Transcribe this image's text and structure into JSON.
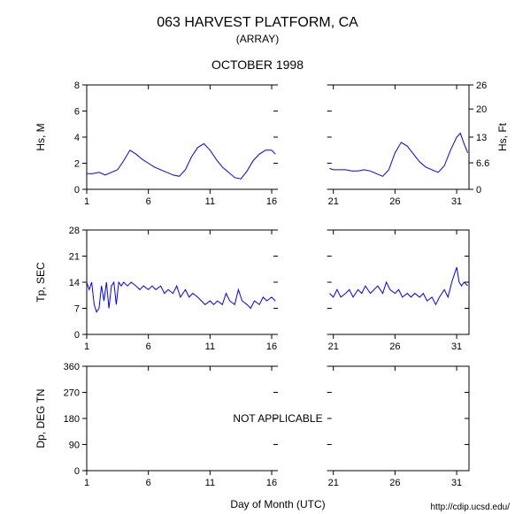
{
  "title": "063 HARVEST PLATFORM, CA",
  "subtitle": "(ARRAY)",
  "month_label": "OCTOBER 1998",
  "xaxis_label": "Day of Month (UTC)",
  "source_url": "http://cdip.ucsd.edu/",
  "background_color": "#ffffff",
  "line_color": "#0000ff",
  "axis_color": "#000000",
  "font_family": "Arial",
  "title_fontsize": 16,
  "subtitle_fontsize": 12,
  "month_fontsize": 14,
  "label_fontsize": 12,
  "tick_fontsize": 11,
  "x_axis": {
    "min": 1,
    "max": 32,
    "ticks": [
      1,
      6,
      11,
      16,
      21,
      26,
      31
    ]
  },
  "panels": [
    {
      "ylabel_left": "Hs, M",
      "ylabel_right": "Hs, Ft",
      "y_left": {
        "min": 0,
        "max": 8,
        "ticks": [
          0,
          2,
          4,
          6,
          8
        ]
      },
      "y_right": {
        "min": 0,
        "max": 26,
        "ticks": [
          0,
          6.6,
          13,
          20,
          26
        ]
      },
      "gap": [
        16.5,
        20.5
      ],
      "series": [
        {
          "seg": "A",
          "data": [
            [
              1,
              1.2
            ],
            [
              1.5,
              1.2
            ],
            [
              2,
              1.3
            ],
            [
              2.5,
              1.1
            ],
            [
              3,
              1.3
            ],
            [
              3.5,
              1.5
            ],
            [
              4,
              2.2
            ],
            [
              4.5,
              3.0
            ],
            [
              5,
              2.7
            ],
            [
              5.5,
              2.3
            ],
            [
              6,
              2.0
            ],
            [
              6.5,
              1.7
            ],
            [
              7,
              1.5
            ],
            [
              7.5,
              1.3
            ],
            [
              8,
              1.1
            ],
            [
              8.5,
              1.0
            ],
            [
              9,
              1.5
            ],
            [
              9.5,
              2.5
            ],
            [
              10,
              3.2
            ],
            [
              10.5,
              3.5
            ],
            [
              11,
              3.0
            ],
            [
              11.5,
              2.3
            ],
            [
              12,
              1.7
            ],
            [
              12.5,
              1.3
            ],
            [
              13,
              0.9
            ],
            [
              13.5,
              0.8
            ],
            [
              14,
              1.4
            ],
            [
              14.5,
              2.2
            ],
            [
              15,
              2.7
            ],
            [
              15.5,
              3.0
            ],
            [
              16,
              3.0
            ],
            [
              16.3,
              2.7
            ]
          ]
        },
        {
          "seg": "B",
          "data": [
            [
              20.7,
              1.6
            ],
            [
              21,
              1.5
            ],
            [
              21.5,
              1.5
            ],
            [
              22,
              1.5
            ],
            [
              22.5,
              1.4
            ],
            [
              23,
              1.4
            ],
            [
              23.5,
              1.5
            ],
            [
              24,
              1.4
            ],
            [
              24.5,
              1.2
            ],
            [
              25,
              1.0
            ],
            [
              25.5,
              1.5
            ],
            [
              26,
              2.8
            ],
            [
              26.5,
              3.6
            ],
            [
              27,
              3.3
            ],
            [
              27.5,
              2.7
            ],
            [
              28,
              2.1
            ],
            [
              28.5,
              1.7
            ],
            [
              29,
              1.5
            ],
            [
              29.5,
              1.3
            ],
            [
              30,
              1.8
            ],
            [
              30.5,
              3.0
            ],
            [
              31,
              4.0
            ],
            [
              31.3,
              4.3
            ],
            [
              31.6,
              3.5
            ],
            [
              31.9,
              2.8
            ]
          ]
        }
      ]
    },
    {
      "ylabel_left": "Tp, SEC",
      "y_left": {
        "min": 0,
        "max": 28,
        "ticks": [
          0,
          7,
          14,
          21,
          28
        ]
      },
      "gap": [
        16.5,
        20.5
      ],
      "series": [
        {
          "seg": "A",
          "data": [
            [
              1,
              14
            ],
            [
              1.2,
              12
            ],
            [
              1.4,
              14
            ],
            [
              1.6,
              8
            ],
            [
              1.8,
              6
            ],
            [
              2,
              7
            ],
            [
              2.2,
              13
            ],
            [
              2.4,
              9
            ],
            [
              2.6,
              14
            ],
            [
              2.8,
              7
            ],
            [
              3,
              13
            ],
            [
              3.2,
              14
            ],
            [
              3.4,
              8
            ],
            [
              3.6,
              14
            ],
            [
              3.8,
              13
            ],
            [
              4,
              14
            ],
            [
              4.3,
              13
            ],
            [
              4.6,
              14
            ],
            [
              5,
              13
            ],
            [
              5.3,
              12
            ],
            [
              5.6,
              13
            ],
            [
              6,
              12
            ],
            [
              6.3,
              13
            ],
            [
              6.6,
              12
            ],
            [
              7,
              13
            ],
            [
              7.3,
              11
            ],
            [
              7.6,
              12
            ],
            [
              8,
              11
            ],
            [
              8.3,
              13
            ],
            [
              8.6,
              10
            ],
            [
              9,
              12
            ],
            [
              9.3,
              10
            ],
            [
              9.6,
              11
            ],
            [
              10,
              10
            ],
            [
              10.3,
              9
            ],
            [
              10.6,
              8
            ],
            [
              11,
              9
            ],
            [
              11.3,
              8
            ],
            [
              11.6,
              9
            ],
            [
              12,
              8
            ],
            [
              12.3,
              11
            ],
            [
              12.6,
              9
            ],
            [
              13,
              8
            ],
            [
              13.3,
              12
            ],
            [
              13.6,
              9
            ],
            [
              14,
              8
            ],
            [
              14.3,
              7
            ],
            [
              14.6,
              9
            ],
            [
              15,
              8
            ],
            [
              15.3,
              10
            ],
            [
              15.6,
              9
            ],
            [
              16,
              10
            ],
            [
              16.3,
              9
            ]
          ]
        },
        {
          "seg": "B",
          "data": [
            [
              20.7,
              11
            ],
            [
              21,
              10
            ],
            [
              21.3,
              12
            ],
            [
              21.6,
              10
            ],
            [
              22,
              11
            ],
            [
              22.3,
              12
            ],
            [
              22.6,
              10
            ],
            [
              23,
              12
            ],
            [
              23.3,
              11
            ],
            [
              23.6,
              13
            ],
            [
              24,
              11
            ],
            [
              24.3,
              12
            ],
            [
              24.6,
              13
            ],
            [
              25,
              11
            ],
            [
              25.3,
              14
            ],
            [
              25.6,
              12
            ],
            [
              26,
              11
            ],
            [
              26.3,
              12
            ],
            [
              26.6,
              10
            ],
            [
              27,
              11
            ],
            [
              27.3,
              10
            ],
            [
              27.6,
              11
            ],
            [
              28,
              10
            ],
            [
              28.3,
              11
            ],
            [
              28.6,
              9
            ],
            [
              29,
              10
            ],
            [
              29.3,
              8
            ],
            [
              29.6,
              10
            ],
            [
              30,
              12
            ],
            [
              30.3,
              10
            ],
            [
              30.6,
              14
            ],
            [
              31,
              18
            ],
            [
              31.2,
              14
            ],
            [
              31.4,
              13
            ],
            [
              31.6,
              14
            ],
            [
              31.9,
              13
            ]
          ]
        }
      ]
    },
    {
      "ylabel_left": "Dp, DEG TN",
      "y_left": {
        "min": 0,
        "max": 360,
        "ticks": [
          0,
          90,
          180,
          270,
          360
        ]
      },
      "gap": [
        16.5,
        20.5
      ],
      "overlay_text": "NOT APPLICABLE",
      "series": []
    }
  ]
}
